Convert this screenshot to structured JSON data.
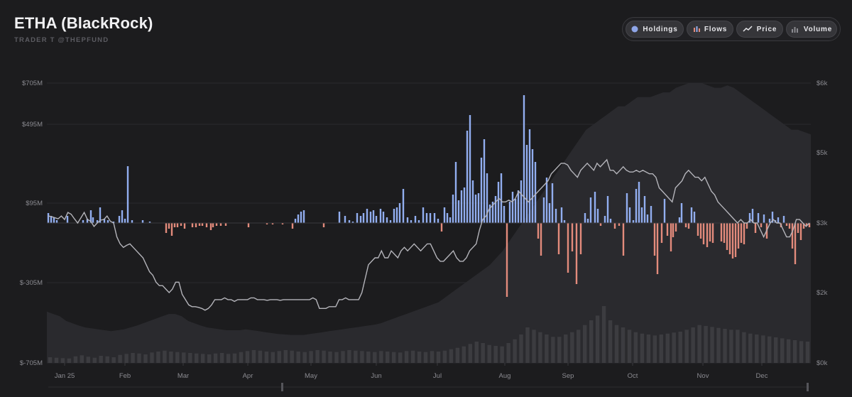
{
  "header": {
    "title": "ETHA (BlackRock)",
    "subtitle": "TRADER T @THEPFUND"
  },
  "toggles": [
    {
      "label": "Holdings",
      "icon": "dot-icon",
      "color": "#8fa6e8"
    },
    {
      "label": "Flows",
      "icon": "bars-icon",
      "color": "#e8897a"
    },
    {
      "label": "Price",
      "icon": "line-trend-icon",
      "color": "#e6e6ea"
    },
    {
      "label": "Volume",
      "icon": "bars-volume-icon",
      "color": "#8a8a90"
    }
  ],
  "chart_data": {
    "type": "bar",
    "x_axis": {
      "tick_labels": [
        "Jan 25",
        "Feb",
        "Mar",
        "Apr",
        "May",
        "Jun",
        "Jul",
        "Aug",
        "Sep",
        "Oct",
        "Nov",
        "Dec"
      ]
    },
    "y_left": {
      "tick_labels": [
        "$705M",
        "$495M",
        "$95M",
        "$-305M",
        "$-705M"
      ],
      "tick_values": [
        705,
        495,
        95,
        -305,
        -705
      ],
      "range": [
        -705,
        705
      ],
      "unit": "USD millions"
    },
    "y_right": {
      "tick_labels": [
        "$6k",
        "$5k",
        "$3k",
        "$2k",
        "$0k"
      ],
      "tick_values": [
        6000,
        5000,
        3000,
        2000,
        0
      ],
      "range": [
        0,
        6000
      ]
    },
    "colors": {
      "inflow": "#92aef0",
      "outflow": "#e38b7c",
      "price": "#b4b4ba",
      "holdings": "#2b2b2f",
      "volume": "#3c3c40"
    },
    "grid": true,
    "legend": "top-right",
    "series": [
      {
        "name": "Flows",
        "unit": "USD millions",
        "values": [
          45,
          30,
          15,
          5,
          0,
          0,
          0,
          0,
          0,
          35,
          0,
          0,
          0,
          0,
          0,
          10,
          0,
          0,
          0,
          15,
          0,
          20,
          0,
          10,
          15,
          70,
          0,
          0,
          60,
          0,
          0,
          20,
          0,
          0,
          0,
          15,
          0,
          0,
          0,
          0,
          0,
          0,
          10,
          0,
          0,
          0,
          0,
          0,
          270,
          0,
          0,
          0,
          0,
          0,
          0,
          0,
          -15,
          0,
          0,
          0,
          0,
          0,
          0,
          0,
          10,
          0,
          0,
          0,
          0,
          0,
          0,
          0,
          0,
          0,
          0,
          0,
          -50,
          -40,
          -25,
          -20,
          -30,
          -25,
          -15,
          -10,
          0,
          -20,
          0,
          0,
          0,
          0,
          -25,
          -30,
          0,
          -35,
          0,
          -20,
          0,
          -20,
          0,
          -25,
          -15,
          0,
          0,
          0,
          0,
          0,
          0,
          0,
          0,
          0,
          0,
          0,
          -20,
          0,
          0,
          -10,
          0,
          0,
          0,
          0,
          0,
          0,
          0,
          0,
          0,
          0,
          0,
          0,
          0,
          0,
          0,
          0,
          0,
          0,
          0,
          0,
          0,
          0,
          0,
          0,
          0,
          0,
          0,
          -5,
          0,
          0,
          0,
          0,
          0,
          0,
          0,
          0,
          0,
          0,
          0,
          0,
          -25,
          0,
          0,
          0,
          0,
          0,
          0,
          0,
          0,
          0,
          -10,
          0,
          0,
          0,
          0,
          0,
          0,
          0,
          0,
          0,
          -5,
          0,
          0,
          -30,
          0,
          0,
          0,
          0,
          0,
          0,
          0,
          0,
          0,
          0,
          0,
          0,
          0,
          0,
          0,
          0,
          0,
          0,
          0,
          0,
          0,
          0,
          0,
          0,
          0,
          0,
          0,
          0,
          0,
          0,
          0,
          0,
          0,
          0,
          0,
          0,
          -25,
          0,
          0,
          10,
          0,
          0,
          0,
          0,
          0,
          0,
          0,
          0,
          0,
          0,
          0,
          0,
          0,
          0,
          0,
          0,
          0,
          0,
          0,
          0,
          0,
          0,
          0,
          0,
          0,
          0,
          0,
          0,
          0,
          0,
          0,
          0,
          0,
          0,
          0,
          0,
          0,
          0,
          0,
          0,
          -10,
          0,
          0,
          0,
          0,
          0,
          0,
          0,
          0,
          0,
          0,
          0,
          0,
          0,
          0,
          0,
          0,
          0,
          0,
          0,
          0,
          0,
          0,
          20,
          0,
          0,
          0,
          0,
          0,
          0,
          0,
          0,
          0,
          0,
          0,
          0,
          -20,
          0,
          0,
          0,
          0,
          0,
          0,
          0,
          0,
          0,
          0,
          0,
          0,
          0,
          0,
          0,
          0,
          0,
          0,
          0,
          0,
          0,
          0,
          0,
          0,
          0,
          0,
          0,
          0,
          0,
          0,
          0,
          0,
          0,
          -20,
          0,
          0,
          0,
          0,
          0,
          0,
          0,
          0,
          0,
          0,
          0,
          0,
          0,
          0,
          0,
          0,
          0,
          0,
          -10,
          0,
          0,
          0,
          0,
          0,
          0,
          0,
          0,
          0,
          0,
          0,
          0,
          0,
          0,
          0,
          0,
          0,
          0,
          0,
          0,
          0,
          0,
          0,
          0,
          0,
          0,
          0,
          0,
          0,
          0,
          -30,
          0,
          20,
          50,
          60,
          75,
          0,
          90,
          0,
          0,
          20,
          40,
          0,
          0,
          0,
          0,
          0,
          40,
          45,
          65,
          60,
          35,
          0,
          50,
          0,
          0,
          15,
          60,
          0,
          0,
          0,
          70,
          0,
          0,
          40,
          0,
          0,
          0,
          50,
          0,
          0,
          0,
          0,
          0,
          0,
          20,
          15,
          0,
          0,
          15,
          0,
          0,
          0,
          0,
          0,
          0,
          0,
          0,
          0,
          0,
          10,
          0,
          0,
          0,
          0,
          0,
          0,
          0,
          0,
          0,
          0,
          0,
          0,
          0,
          0,
          0,
          0,
          0,
          0,
          0,
          0,
          0,
          0,
          0,
          0,
          0,
          0,
          0,
          0,
          0,
          0,
          0,
          0,
          0,
          0,
          0,
          0,
          0,
          0,
          0,
          0,
          0,
          0,
          0,
          0,
          0,
          0,
          0,
          0,
          0,
          0,
          0,
          0,
          0,
          0,
          0,
          0,
          0,
          0,
          0,
          0,
          0,
          0,
          0,
          0,
          0,
          0,
          0,
          0,
          0,
          0,
          0,
          0,
          0,
          0,
          0,
          0,
          0,
          0,
          0,
          0,
          0,
          0,
          0,
          0,
          0,
          0,
          0,
          0,
          0,
          0,
          0,
          0,
          0,
          0,
          0,
          0,
          0,
          0,
          0,
          0,
          0,
          0,
          0,
          0,
          0,
          0,
          0,
          0,
          0,
          0,
          0,
          0,
          0,
          0,
          0,
          0,
          0,
          0,
          0,
          0,
          0,
          0,
          0,
          0,
          0,
          0,
          0,
          0,
          0,
          0,
          0,
          0,
          0,
          0,
          0,
          0,
          0,
          0,
          0,
          0,
          0,
          0,
          0,
          0,
          0,
          0,
          0,
          0,
          0,
          0,
          0,
          0,
          0,
          0,
          0,
          0,
          0,
          0,
          0,
          0,
          0,
          0,
          0,
          0,
          0,
          0,
          0,
          0,
          0,
          0,
          0,
          0,
          0,
          0,
          0,
          0,
          0,
          0,
          0,
          0,
          0,
          0,
          0,
          0,
          0,
          0,
          0,
          0,
          0,
          0,
          0,
          0,
          0
        ]
      },
      {
        "name": "Price",
        "unit": "USD",
        "values": [
          3200,
          3180,
          3150,
          3120,
          3200,
          3100,
          3300,
          3250,
          3120,
          3000,
          3150,
          3300,
          3100,
          3050,
          2950,
          3000,
          3080,
          3100,
          3200,
          3050,
          3000,
          2800,
          2700,
          2650,
          2680,
          2700,
          2650,
          2600,
          2550,
          2500,
          2400,
          2300,
          2250,
          2150,
          2100,
          2100,
          2050,
          2000,
          2050,
          2150,
          2150,
          1950,
          1800,
          1650,
          1600,
          1600,
          1580,
          1550,
          1500,
          1550,
          1650,
          1800,
          1800,
          1800,
          1850,
          1800,
          1800,
          1750,
          1800,
          1800,
          1800,
          1800,
          1850,
          1850,
          1800,
          1800,
          1800,
          1780,
          1800,
          1800,
          1800,
          1780,
          1800,
          1800,
          1800,
          1800,
          1800,
          1800,
          1800,
          1800,
          1800,
          1850,
          1800,
          1550,
          1550,
          1550,
          1600,
          1600,
          1600,
          1800,
          1800,
          1850,
          1800,
          1800,
          1800,
          1800,
          2000,
          2200,
          2400,
          2450,
          2500,
          2500,
          2600,
          2500,
          2500,
          2600,
          2550,
          2500,
          2600,
          2650,
          2600,
          2650,
          2700,
          2650,
          2600,
          2650,
          2700,
          2700,
          2600,
          2500,
          2450,
          2450,
          2500,
          2550,
          2600,
          2500,
          2450,
          2450,
          2500,
          2600,
          2650,
          2700,
          2900,
          3100,
          3200,
          3400,
          3500,
          3600,
          3700,
          3600,
          3600,
          3650,
          3600,
          3700,
          3900,
          3800,
          3700,
          3600,
          3700,
          3800,
          3900,
          4000,
          4100,
          4200,
          4400,
          4500,
          4600,
          4700,
          4700,
          4650,
          4500,
          4400,
          4300,
          4500,
          4600,
          4700,
          4600,
          4500,
          4700,
          4600,
          4700,
          4800,
          4500,
          4500,
          4400,
          4500,
          4600,
          4500,
          4450,
          4450,
          4500,
          4450,
          4500,
          4450,
          4400,
          4400,
          4300,
          4000,
          3900,
          3800,
          3700,
          3600,
          4000,
          4100,
          4200,
          4400,
          4500,
          4400,
          4300,
          4300,
          4200,
          4300,
          4100,
          3900,
          3800,
          3600,
          3500,
          3400,
          3300,
          3200,
          3100,
          3000,
          3100,
          3000,
          3000,
          3100,
          3000,
          3000,
          2900,
          2800,
          2900,
          3000,
          3100,
          3000,
          3000,
          2900,
          2800,
          2800,
          2900,
          3100,
          3100,
          3000,
          2950,
          3000
        ]
      },
      {
        "name": "Holdings",
        "unit": "USD",
        "values": [
          1100,
          1050,
          1000,
          900,
          850,
          800,
          760,
          740,
          720,
          700,
          680,
          700,
          720,
          760,
          800,
          850,
          900,
          950,
          1000,
          1050,
          1050,
          1000,
          900,
          850,
          800,
          760,
          740,
          720,
          700,
          700,
          700,
          720,
          700,
          680,
          660,
          640,
          620,
          610,
          600,
          600,
          600,
          620,
          640,
          660,
          680,
          700,
          720,
          740,
          760,
          780,
          800,
          820,
          850,
          900,
          950,
          1000,
          1050,
          1100,
          1150,
          1200,
          1250,
          1300,
          1400,
          1500,
          1600,
          1700,
          1800,
          1900,
          2000,
          2100,
          2250,
          2400,
          2600,
          2800,
          3000,
          3200,
          3400,
          3600,
          3800,
          4000,
          4200,
          4400,
          4600,
          4800,
          5000,
          5100,
          5200,
          5300,
          5400,
          5500,
          5500,
          5600,
          5700,
          5700,
          5700,
          5750,
          5800,
          5800,
          5900,
          5950,
          6000,
          6000,
          6000,
          5950,
          5900,
          5900,
          5950,
          5900,
          5800,
          5700,
          5600,
          5500,
          5400,
          5300,
          5200,
          5100,
          5000,
          5000,
          4950,
          4900
        ]
      },
      {
        "name": "Volume",
        "unit": "USD",
        "values": [
          120,
          110,
          100,
          95,
          140,
          160,
          130,
          110,
          150,
          140,
          120,
          170,
          190,
          210,
          200,
          180,
          220,
          240,
          260,
          240,
          230,
          220,
          210,
          200,
          190,
          180,
          200,
          210,
          190,
          200,
          230,
          250,
          270,
          260,
          240,
          230,
          250,
          270,
          260,
          240,
          230,
          250,
          270,
          260,
          240,
          230,
          250,
          270,
          260,
          250,
          240,
          230,
          250,
          240,
          230,
          220,
          250,
          260,
          240,
          230,
          250,
          240,
          260,
          290,
          320,
          350,
          400,
          450,
          420,
          380,
          360,
          350,
          420,
          500,
          600,
          750,
          700,
          650,
          600,
          550,
          550,
          600,
          650,
          700,
          800,
          900,
          1000,
          1200,
          900,
          800,
          750,
          700,
          650,
          620,
          600,
          580,
          600,
          620,
          640,
          660,
          700,
          750,
          800,
          780,
          760,
          740,
          720,
          700,
          700,
          650,
          620,
          600,
          580,
          560,
          540,
          520,
          500,
          480,
          460,
          450
        ]
      }
    ]
  },
  "scrollbar": {
    "range_start_label": "",
    "range_end_label": ""
  }
}
